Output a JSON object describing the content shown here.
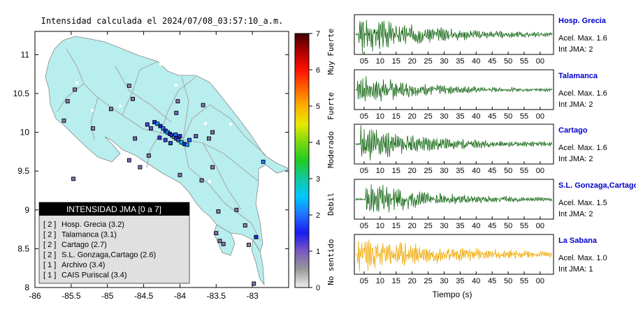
{
  "map": {
    "title": "Intensidad calculada el 2024/07/08_03:57:10_a.m.",
    "x_ticks": [
      "-86",
      "-85.5",
      "-85",
      "-84.5",
      "-84",
      "-83.5",
      "-83"
    ],
    "y_ticks": [
      "11",
      "10.5",
      "10",
      "9.5",
      "9",
      "8.5",
      "8"
    ],
    "xlim": [
      -86,
      -82.5
    ],
    "ylim": [
      8,
      11.3
    ],
    "colors": {
      "land": "#b8eeee",
      "ocean": "#ffffff",
      "road": "#aaaaaa",
      "station_border": "#000000"
    },
    "legend": {
      "title": "INTENSIDAD JMA [0 a 7]",
      "items": [
        {
          "tag": "[ 2 ]",
          "label": "Hosp. Grecia (3.2)"
        },
        {
          "tag": "[ 2 ]",
          "label": "Talamanca (3.1)"
        },
        {
          "tag": "[ 2 ]",
          "label": "Cartago (2.7)"
        },
        {
          "tag": "[ 2 ]",
          "label": "S.L. Gonzaga,Cartago (2.6)"
        },
        {
          "tag": "[ 1 ]",
          "label": "Archivo (3.4)"
        },
        {
          "tag": "[ 1 ]",
          "label": "CAIS Puriscal (3.4)"
        }
      ]
    },
    "stations": [
      {
        "lon": -84.35,
        "lat": 10.13,
        "intensity": 1.6
      },
      {
        "lon": -84.31,
        "lat": 10.11,
        "intensity": 2.2
      },
      {
        "lon": -84.27,
        "lat": 10.08,
        "intensity": 1.5
      },
      {
        "lon": -84.23,
        "lat": 10.05,
        "intensity": 2.1
      },
      {
        "lon": -84.2,
        "lat": 10.02,
        "intensity": 1.4
      },
      {
        "lon": -84.17,
        "lat": 10.0,
        "intensity": 2.4
      },
      {
        "lon": -84.14,
        "lat": 9.98,
        "intensity": 1.5
      },
      {
        "lon": -84.11,
        "lat": 9.96,
        "intensity": 1.7
      },
      {
        "lon": -84.08,
        "lat": 9.94,
        "intensity": 2.2
      },
      {
        "lon": -84.05,
        "lat": 9.92,
        "intensity": 1.3
      },
      {
        "lon": -84.02,
        "lat": 9.9,
        "intensity": 1.9
      },
      {
        "lon": -83.98,
        "lat": 9.87,
        "intensity": 2.5
      },
      {
        "lon": -83.94,
        "lat": 9.85,
        "intensity": 1.6
      },
      {
        "lon": -83.9,
        "lat": 9.84,
        "intensity": 2.3
      },
      {
        "lon": -84.2,
        "lat": 9.9,
        "intensity": 1.2
      },
      {
        "lon": -84.13,
        "lat": 9.86,
        "intensity": 1.8
      },
      {
        "lon": -84.06,
        "lat": 9.97,
        "intensity": 2.0
      },
      {
        "lon": -84.0,
        "lat": 9.95,
        "intensity": 1.4
      },
      {
        "lon": -84.28,
        "lat": 9.93,
        "intensity": 1.3
      },
      {
        "lon": -83.87,
        "lat": 9.9,
        "intensity": 1.9
      },
      {
        "lon": -84.4,
        "lat": 10.05,
        "intensity": 1.1
      },
      {
        "lon": -84.45,
        "lat": 10.1,
        "intensity": 1.2
      },
      {
        "lon": -84.05,
        "lat": 10.25,
        "intensity": 0.9
      },
      {
        "lon": -83.68,
        "lat": 10.35,
        "intensity": 0.8
      },
      {
        "lon": -84.03,
        "lat": 10.4,
        "intensity": 0.8
      },
      {
        "lon": -84.65,
        "lat": 10.43,
        "intensity": 0.8
      },
      {
        "lon": -84.7,
        "lat": 10.6,
        "intensity": 0.7
      },
      {
        "lon": -85.45,
        "lat": 10.55,
        "intensity": 0.7
      },
      {
        "lon": -85.55,
        "lat": 10.4,
        "intensity": 0.7
      },
      {
        "lon": -85.6,
        "lat": 10.15,
        "intensity": 0.7
      },
      {
        "lon": -85.2,
        "lat": 10.05,
        "intensity": 0.7
      },
      {
        "lon": -84.95,
        "lat": 10.3,
        "intensity": 0.8
      },
      {
        "lon": -83.55,
        "lat": 10.0,
        "intensity": 0.9
      },
      {
        "lon": -83.78,
        "lat": 9.95,
        "intensity": 1.0
      },
      {
        "lon": -83.6,
        "lat": 9.92,
        "intensity": 0.8
      },
      {
        "lon": -82.85,
        "lat": 9.62,
        "intensity": 2.1
      },
      {
        "lon": -84.7,
        "lat": 9.64,
        "intensity": 0.9
      },
      {
        "lon": -84.62,
        "lat": 9.92,
        "intensity": 0.9
      },
      {
        "lon": -84.43,
        "lat": 9.7,
        "intensity": 0.8
      },
      {
        "lon": -84.55,
        "lat": 9.55,
        "intensity": 0.8
      },
      {
        "lon": -84.0,
        "lat": 9.45,
        "intensity": 0.8
      },
      {
        "lon": -83.7,
        "lat": 9.38,
        "intensity": 0.7
      },
      {
        "lon": -83.55,
        "lat": 9.55,
        "intensity": 0.8
      },
      {
        "lon": -83.47,
        "lat": 8.98,
        "intensity": 0.7
      },
      {
        "lon": -83.5,
        "lat": 8.7,
        "intensity": 0.8
      },
      {
        "lon": -83.45,
        "lat": 8.6,
        "intensity": 0.7
      },
      {
        "lon": -83.4,
        "lat": 8.56,
        "intensity": 0.8
      },
      {
        "lon": -83.22,
        "lat": 9.0,
        "intensity": 0.8
      },
      {
        "lon": -83.1,
        "lat": 8.8,
        "intensity": 0.7
      },
      {
        "lon": -82.95,
        "lat": 8.65,
        "intensity": 1.6
      },
      {
        "lon": -83.05,
        "lat": 8.55,
        "intensity": 0.7
      },
      {
        "lon": -82.98,
        "lat": 8.05,
        "intensity": 0.8
      },
      {
        "lon": -85.47,
        "lat": 9.4,
        "intensity": 0.8
      }
    ]
  },
  "colorbar": {
    "ticks": [
      "7",
      "6",
      "5",
      "4",
      "3",
      "2",
      "1",
      "0"
    ],
    "labels": [
      "Muy Fuerte",
      "Fuerte",
      "Moderado",
      "Debil",
      "No sentido"
    ],
    "range": [
      0,
      7
    ],
    "gradient": [
      "#eeeeee",
      "#999999",
      "#7a59c2",
      "#1a1af0",
      "#2070ff",
      "#00c8ff",
      "#10c8a0",
      "#20cc20",
      "#7ad810",
      "#e8e800",
      "#ffb000",
      "#ff6000",
      "#ff1000",
      "#b00000",
      "#400000"
    ]
  },
  "chart_data": {
    "type": "line",
    "xlabel": "Tiempo (s)",
    "x_ticks": [
      "05",
      "10",
      "15",
      "20",
      "25",
      "30",
      "35",
      "40",
      "45",
      "50",
      "55",
      "00"
    ],
    "series": [
      {
        "name": "Hosp. Grecia",
        "accel": "Acel. Max. 1.6",
        "int": "Int JMA: 2",
        "color": "#116611",
        "onset": 1.0,
        "peak": 0.95,
        "decay": 0.045,
        "seed": 3
      },
      {
        "name": "Talamanca",
        "accel": "Acel. Max. 1.6",
        "int": "Int JMA: 2",
        "color": "#116611",
        "onset": 0.5,
        "peak": 0.9,
        "decay": 0.06,
        "seed": 7
      },
      {
        "name": "Cartago",
        "accel": "Acel. Max. 1.6",
        "int": "Int JMA: 2",
        "color": "#116611",
        "onset": 1.5,
        "peak": 0.95,
        "decay": 0.05,
        "seed": 11
      },
      {
        "name": "S.L. Gonzaga,Cartago",
        "accel": "Acel. Max. 1.5",
        "int": "Int JMA: 2",
        "color": "#116611",
        "onset": 3.0,
        "peak": 0.95,
        "decay": 0.055,
        "seed": 17
      },
      {
        "name": "La Sabana",
        "accel": "Acel. Max. 1.0",
        "int": "Int JMA: 1",
        "color": "#f0a800",
        "onset": 0.5,
        "peak": 0.95,
        "decay": 0.035,
        "seed": 23
      }
    ],
    "name_color": "#0000cc"
  }
}
